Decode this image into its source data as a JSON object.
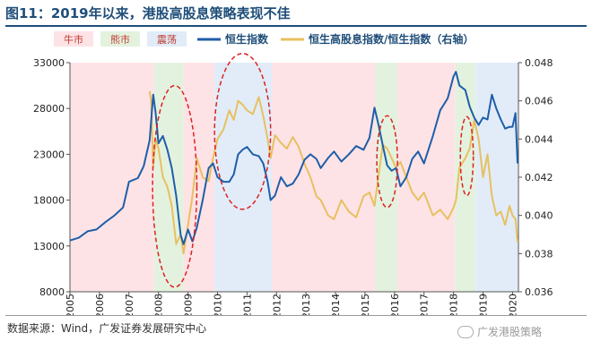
{
  "figure": {
    "title": "图11：2019年以来，港股高股息策略表现不佳",
    "source": "数据来源：Wind，广发证券发展研究中心",
    "watermark": "广发港股策略"
  },
  "chart_data": {
    "type": "line",
    "legend": [
      {
        "label": "牛市",
        "kind": "regime",
        "color": "#fde3e6"
      },
      {
        "label": "熊市",
        "kind": "regime",
        "color": "#e3f2df"
      },
      {
        "label": "震荡",
        "kind": "regime",
        "color": "#e1ecf8"
      },
      {
        "label": "恒生指数",
        "kind": "line",
        "color": "#1f5ea8"
      },
      {
        "label": "恒生高股息指数/恒生指数（右轴）",
        "kind": "line",
        "color": "#e8c060"
      }
    ],
    "xlim": [
      2005,
      2020.2
    ],
    "x_ticks": [
      "2005",
      "2006",
      "2007",
      "2008",
      "2009",
      "2010",
      "2011",
      "2012",
      "2013",
      "2014",
      "2015",
      "2016",
      "2017",
      "2018",
      "2019",
      "2020"
    ],
    "ylim_left": [
      8000,
      33000
    ],
    "y_ticks_left": [
      "8000",
      "13000",
      "18000",
      "23000",
      "28000",
      "33000"
    ],
    "ylim_right": [
      0.036,
      0.048
    ],
    "y_ticks_right": [
      "0.036",
      "0.038",
      "0.040",
      "0.042",
      "0.044",
      "0.046",
      "0.048"
    ],
    "regimes": [
      {
        "start": 2005.0,
        "end": 2007.85,
        "type": "牛市"
      },
      {
        "start": 2007.85,
        "end": 2008.85,
        "type": "熊市"
      },
      {
        "start": 2008.85,
        "end": 2009.9,
        "type": "牛市"
      },
      {
        "start": 2009.9,
        "end": 2011.85,
        "type": "震荡"
      },
      {
        "start": 2011.85,
        "end": 2015.35,
        "type": "牛市"
      },
      {
        "start": 2015.35,
        "end": 2016.1,
        "type": "熊市"
      },
      {
        "start": 2016.1,
        "end": 2018.05,
        "type": "牛市"
      },
      {
        "start": 2018.05,
        "end": 2018.75,
        "type": "熊市"
      },
      {
        "start": 2018.75,
        "end": 2020.2,
        "type": "震荡"
      }
    ],
    "series": [
      {
        "name": "恒生指数",
        "axis": "left",
        "color": "#1f5ea8",
        "x": [
          2005.0,
          2005.3,
          2005.6,
          2005.9,
          2006.2,
          2006.5,
          2006.8,
          2007.0,
          2007.3,
          2007.5,
          2007.7,
          2007.82,
          2007.9,
          2008.0,
          2008.15,
          2008.3,
          2008.45,
          2008.6,
          2008.75,
          2008.85,
          2009.0,
          2009.15,
          2009.3,
          2009.5,
          2009.7,
          2009.85,
          2010.0,
          2010.2,
          2010.4,
          2010.55,
          2010.7,
          2010.85,
          2011.0,
          2011.2,
          2011.4,
          2011.55,
          2011.7,
          2011.8,
          2011.95,
          2012.15,
          2012.35,
          2012.55,
          2012.75,
          2012.95,
          2013.15,
          2013.35,
          2013.5,
          2013.75,
          2013.95,
          2014.2,
          2014.45,
          2014.7,
          2014.95,
          2015.15,
          2015.32,
          2015.45,
          2015.6,
          2015.75,
          2015.9,
          2016.05,
          2016.2,
          2016.4,
          2016.6,
          2016.8,
          2017.0,
          2017.3,
          2017.55,
          2017.8,
          2018.0,
          2018.08,
          2018.2,
          2018.4,
          2018.55,
          2018.7,
          2018.85,
          2019.0,
          2019.15,
          2019.3,
          2019.45,
          2019.6,
          2019.75,
          2019.9,
          2020.0,
          2020.1,
          2020.17
        ],
        "y": [
          13600,
          13900,
          14600,
          14800,
          15600,
          16300,
          17200,
          20000,
          20400,
          21700,
          24500,
          29500,
          27600,
          24200,
          25000,
          23500,
          21500,
          18500,
          14200,
          13200,
          14800,
          13500,
          15000,
          18000,
          21500,
          22000,
          20500,
          20000,
          20000,
          20800,
          23000,
          23500,
          23800,
          23000,
          22800,
          22000,
          20000,
          18000,
          18500,
          20500,
          19500,
          19800,
          20800,
          22400,
          23000,
          22500,
          21500,
          22600,
          23300,
          22200,
          23000,
          23900,
          23500,
          24800,
          28100,
          26300,
          24000,
          21800,
          21200,
          21500,
          19500,
          20500,
          22500,
          23300,
          22000,
          25000,
          27800,
          29100,
          31500,
          32000,
          30500,
          30000,
          28200,
          27000,
          26200,
          27000,
          26800,
          29500,
          28000,
          26800,
          25800,
          26000,
          26000,
          27500,
          22000
        ]
      },
      {
        "name": "恒生高股息指数/恒生指数（右轴）",
        "axis": "right",
        "color": "#e8c060",
        "x": [
          2007.7,
          2007.75,
          2007.82,
          2007.9,
          2008.0,
          2008.15,
          2008.3,
          2008.45,
          2008.6,
          2008.75,
          2008.85,
          2009.0,
          2009.15,
          2009.3,
          2009.5,
          2009.7,
          2009.85,
          2010.0,
          2010.2,
          2010.4,
          2010.55,
          2010.7,
          2010.85,
          2011.0,
          2011.2,
          2011.4,
          2011.55,
          2011.7,
          2011.8,
          2011.95,
          2012.15,
          2012.35,
          2012.55,
          2012.75,
          2012.95,
          2013.15,
          2013.35,
          2013.5,
          2013.75,
          2013.95,
          2014.2,
          2014.45,
          2014.7,
          2014.95,
          2015.15,
          2015.32,
          2015.45,
          2015.6,
          2015.75,
          2015.9,
          2016.05,
          2016.2,
          2016.4,
          2016.6,
          2016.8,
          2017.0,
          2017.3,
          2017.55,
          2017.8,
          2018.0,
          2018.08,
          2018.2,
          2018.4,
          2018.55,
          2018.7,
          2018.85,
          2019.0,
          2019.15,
          2019.3,
          2019.45,
          2019.6,
          2019.75,
          2019.9,
          2020.0,
          2020.1,
          2020.17
        ],
        "y": [
          0.0465,
          0.046,
          0.0425,
          0.044,
          0.0435,
          0.042,
          0.0415,
          0.0405,
          0.0385,
          0.039,
          0.038,
          0.0395,
          0.041,
          0.043,
          0.042,
          0.0418,
          0.043,
          0.044,
          0.0445,
          0.0455,
          0.045,
          0.046,
          0.0458,
          0.0455,
          0.0453,
          0.0462,
          0.0452,
          0.044,
          0.043,
          0.0442,
          0.0438,
          0.0435,
          0.0441,
          0.0436,
          0.0427,
          0.042,
          0.041,
          0.0408,
          0.04,
          0.0398,
          0.0408,
          0.0402,
          0.0399,
          0.041,
          0.0412,
          0.0405,
          0.042,
          0.0437,
          0.0435,
          0.043,
          0.0425,
          0.0428,
          0.042,
          0.0412,
          0.0408,
          0.0412,
          0.04,
          0.0403,
          0.0398,
          0.0404,
          0.0408,
          0.0425,
          0.043,
          0.0435,
          0.045,
          0.044,
          0.042,
          0.0432,
          0.041,
          0.04,
          0.0402,
          0.0395,
          0.0405,
          0.04,
          0.0398,
          0.0386
        ]
      }
    ],
    "annotations": "red dashed ellipses"
  }
}
